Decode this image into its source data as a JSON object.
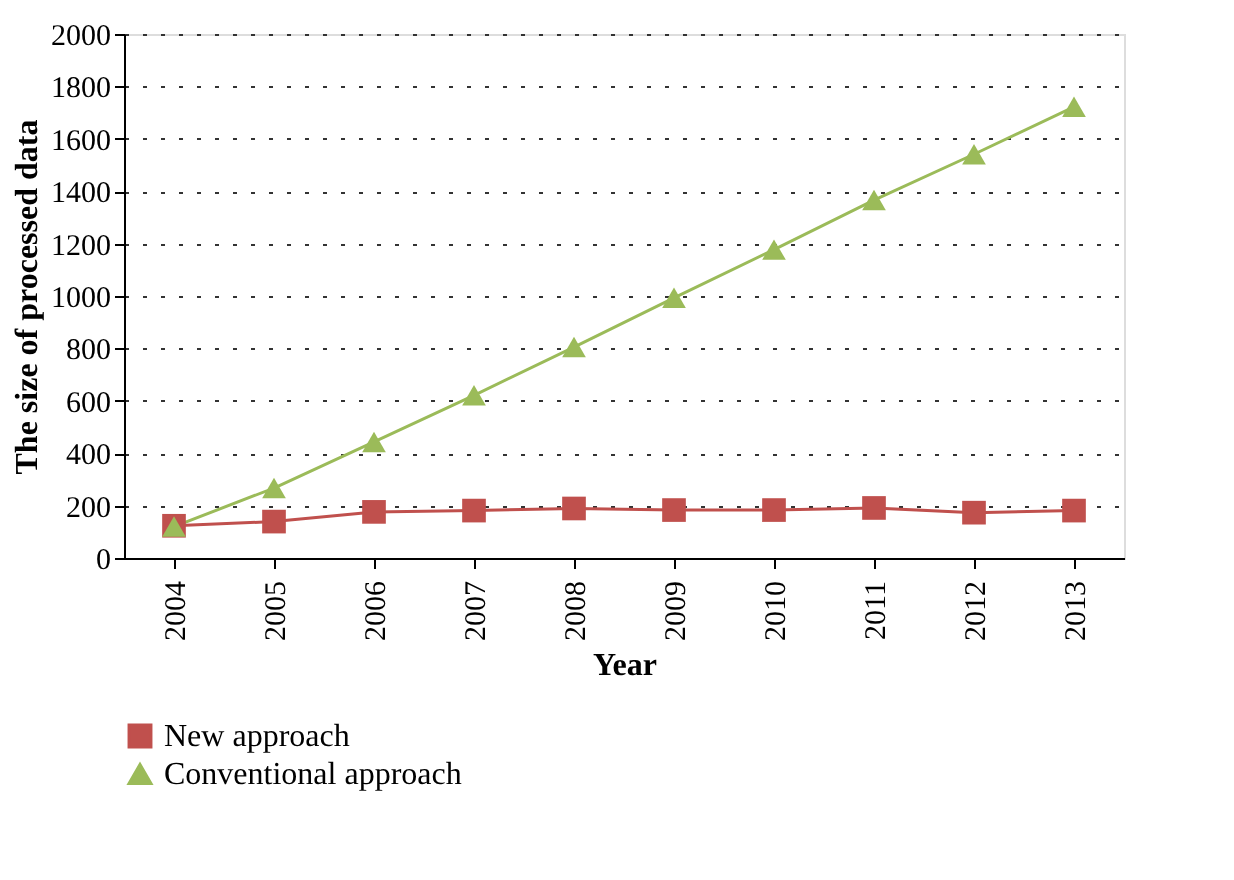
{
  "chart_data": {
    "type": "line",
    "xlabel": "Year",
    "ylabel": "The size of processed data",
    "categories": [
      "2004",
      "2005",
      "2006",
      "2007",
      "2008",
      "2009",
      "2010",
      "2011",
      "2012",
      "2013"
    ],
    "series": [
      {
        "name": "New approach",
        "color": "#c0504d",
        "marker": "square",
        "values": [
          123,
          139,
          176,
          181,
          189,
          183,
          183,
          191,
          173,
          181
        ]
      },
      {
        "name": "Conventional approach",
        "color": "#9bbb59",
        "marker": "triangle",
        "values": [
          120,
          267,
          443,
          621,
          805,
          993,
          1177,
          1366,
          1541,
          1722
        ]
      }
    ],
    "ylim": [
      0,
      2000
    ],
    "yticks": [
      0,
      200,
      400,
      600,
      800,
      1000,
      1200,
      1400,
      1600,
      1800,
      2000
    ],
    "grid": "y",
    "legend": "bottom",
    "line_style": "solid"
  }
}
